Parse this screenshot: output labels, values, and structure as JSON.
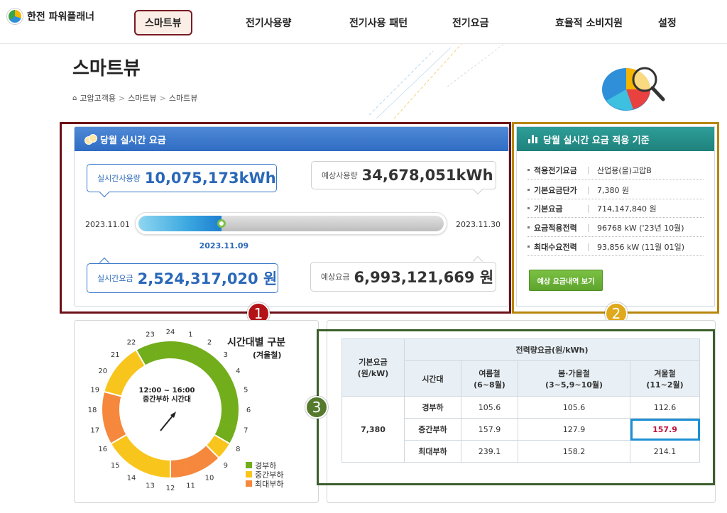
{
  "header": {
    "logo": "한전 파워플래너",
    "nav": [
      {
        "label": "스마트뷰",
        "active": true
      },
      {
        "label": "전기사용량"
      },
      {
        "label": "전기사용 패턴"
      },
      {
        "label": "전기요금"
      },
      {
        "label": "효율적 소비지원"
      },
      {
        "label": "설정"
      }
    ]
  },
  "page": {
    "title": "스마트뷰",
    "breadcrumb": [
      "고압고객용",
      "스마트뷰",
      "스마트뷰"
    ]
  },
  "realtime": {
    "title": "당월 실시간 요금",
    "usage_label": "실시간사용량",
    "usage_value": "10,075,173kWh",
    "expected_usage_label": "예상사용량",
    "expected_usage_value": "34,678,051kWh",
    "start_date": "2023.11.01",
    "end_date": "2023.11.30",
    "current_date": "2023.11.09",
    "progress_fraction": 0.27,
    "charge_label": "실시간요금",
    "charge_value": "2,524,317,020 원",
    "expected_charge_label": "예상요금",
    "expected_charge_value": "6,993,121,669 원"
  },
  "basis": {
    "title": "당월 실시간 요금 적용 기준",
    "rows": [
      {
        "key": "적용전기요금",
        "value": "산업용(을)고압B"
      },
      {
        "key": "기본요금단가",
        "value": "7,380 원"
      },
      {
        "key": "기본요금",
        "value": "714,147,840 원"
      },
      {
        "key": "요금적용전력",
        "value": "96768 kW ('23년 10월)"
      },
      {
        "key": "최대수요전력",
        "value": "93,856 kW (11월 01일)"
      }
    ],
    "button": "예상 요금내역 보기"
  },
  "badges": [
    "1",
    "2",
    "3"
  ],
  "timeband": {
    "title": "시간대별 구분",
    "subtitle": "(겨울철)",
    "center_line1": "12:00 ~ 16:00",
    "center_line2": "중간부하 시간대",
    "hours": [
      "24",
      "1",
      "2",
      "3",
      "4",
      "5",
      "6",
      "7",
      "8",
      "9",
      "10",
      "11",
      "12",
      "13",
      "14",
      "15",
      "16",
      "17",
      "18",
      "19",
      "20",
      "21",
      "22",
      "23"
    ],
    "bands": [
      "경부하",
      "경부하",
      "경부하",
      "경부하",
      "경부하",
      "경부하",
      "경부하",
      "경부하",
      "중간부하",
      "최대부하",
      "최대부하",
      "최대부하",
      "중간부하",
      "중간부하",
      "중간부하",
      "중간부하",
      "최대부하",
      "최대부하",
      "최대부하",
      "중간부하",
      "중간부하",
      "중간부하",
      "경부하",
      "경부하"
    ],
    "legend": [
      {
        "label": "경부하",
        "color": "#72ad1c"
      },
      {
        "label": "중간부하",
        "color": "#f8c51c"
      },
      {
        "label": "최대부하",
        "color": "#f5883c"
      }
    ]
  },
  "rate_table": {
    "base_header": "기본요금\n(원/kW)",
    "group_header": "전력량요금(원/kWh)",
    "time_header": "시간대",
    "seasons": [
      "여름철\n(6~8월)",
      "봄·가을철\n(3~5,9~10월)",
      "겨울철\n(11~2월)"
    ],
    "base_value": "7,380",
    "rows": [
      {
        "band": "경부하",
        "values": [
          "105.6",
          "105.6",
          "112.6"
        ]
      },
      {
        "band": "중간부하",
        "values": [
          "157.9",
          "127.9",
          "157.9"
        ]
      },
      {
        "band": "최대부하",
        "values": [
          "239.1",
          "158.2",
          "214.1"
        ]
      }
    ]
  }
}
